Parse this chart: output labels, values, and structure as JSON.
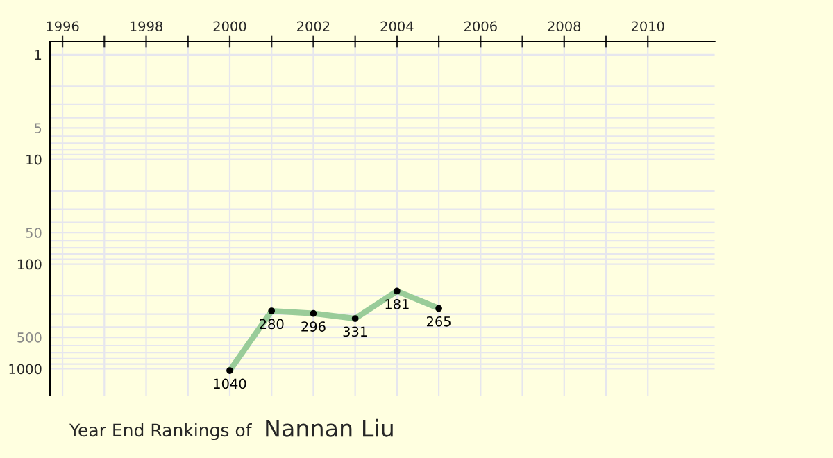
{
  "chart_data": {
    "type": "line",
    "title": "Year End Rankings of",
    "subtitle": "Nannan Liu",
    "x": [
      2000,
      2001,
      2002,
      2003,
      2004,
      2005
    ],
    "series": [
      {
        "color": "#99cc99",
        "values": [
          1040,
          280,
          296,
          331,
          181,
          265
        ]
      }
    ],
    "data_labels": true,
    "marker": "circle",
    "line_style": "solid",
    "log": "y",
    "grid": true,
    "xlim": [
      1995.7,
      2011.6
    ],
    "xticks": [
      1996,
      {
        "value": 1997,
        "label": null
      },
      1998,
      {
        "value": 1999,
        "label": null
      },
      2000,
      {
        "value": 2001,
        "label": null
      },
      2002,
      {
        "value": 2003,
        "label": null
      },
      2004,
      {
        "value": 2005,
        "label": null
      },
      2006,
      {
        "value": 2007,
        "label": null
      },
      2008,
      {
        "value": 2009,
        "label": null
      },
      2010
    ],
    "ylim": [
      1800,
      0.75
    ],
    "yticks": [
      1,
      {
        "value": 2,
        "label": null
      },
      {
        "value": 3,
        "label": null
      },
      {
        "value": 4,
        "label": null
      },
      5,
      {
        "value": 6,
        "label": null
      },
      {
        "value": 7,
        "label": null
      },
      {
        "value": 8,
        "label": null
      },
      {
        "value": 9,
        "label": null
      },
      10,
      {
        "value": 20,
        "label": null
      },
      {
        "value": 30,
        "label": null
      },
      {
        "value": 40,
        "label": null
      },
      50,
      {
        "value": 60,
        "label": null
      },
      {
        "value": 70,
        "label": null
      },
      {
        "value": 80,
        "label": null
      },
      {
        "value": 90,
        "label": null
      },
      100,
      {
        "value": 200,
        "label": null
      },
      {
        "value": 300,
        "label": null
      },
      {
        "value": 400,
        "label": null
      },
      500,
      {
        "value": 600,
        "label": null
      },
      {
        "value": 700,
        "label": null
      },
      {
        "value": 800,
        "label": null
      },
      {
        "value": 900,
        "label": null
      },
      1000
    ]
  }
}
